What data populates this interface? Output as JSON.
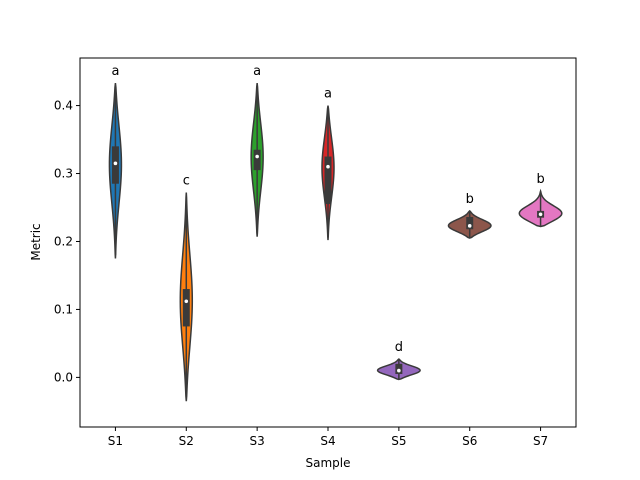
{
  "chart_data": {
    "type": "violin",
    "title": "",
    "xlabel": "Sample",
    "ylabel": "Metric",
    "ylim": [
      -0.073,
      0.47
    ],
    "yticks": [
      0.0,
      0.1,
      0.2,
      0.3,
      0.4
    ],
    "ytick_labels": [
      "0.0",
      "0.1",
      "0.2",
      "0.3",
      "0.4"
    ],
    "grid": false,
    "legend": "none",
    "categories": [
      "S1",
      "S2",
      "S3",
      "S4",
      "S5",
      "S6",
      "S7"
    ],
    "series": [
      {
        "category": "S1",
        "color": "#1f77b4",
        "min": 0.175,
        "max": 0.433,
        "q1": 0.285,
        "median": 0.315,
        "q3": 0.34,
        "annotation": "a"
      },
      {
        "category": "S2",
        "color": "#ff7f0e",
        "min": -0.035,
        "max": 0.272,
        "q1": 0.075,
        "median": 0.112,
        "q3": 0.13,
        "annotation": "c"
      },
      {
        "category": "S3",
        "color": "#2ca02c",
        "min": 0.207,
        "max": 0.433,
        "q1": 0.305,
        "median": 0.325,
        "q3": 0.335,
        "annotation": "a"
      },
      {
        "category": "S4",
        "color": "#d62728",
        "min": 0.202,
        "max": 0.4,
        "q1": 0.255,
        "median": 0.31,
        "q3": 0.325,
        "annotation": "a"
      },
      {
        "category": "S5",
        "color": "#9467bd",
        "min": -0.003,
        "max": 0.027,
        "q1": 0.005,
        "median": 0.01,
        "q3": 0.02,
        "annotation": "d"
      },
      {
        "category": "S6",
        "color": "#8c564b",
        "min": 0.205,
        "max": 0.245,
        "q1": 0.218,
        "median": 0.223,
        "q3": 0.236,
        "annotation": "b"
      },
      {
        "category": "S7",
        "color": "#e377c2",
        "min": 0.222,
        "max": 0.274,
        "q1": 0.235,
        "median": 0.24,
        "q3": 0.245,
        "annotation": "b"
      }
    ]
  }
}
